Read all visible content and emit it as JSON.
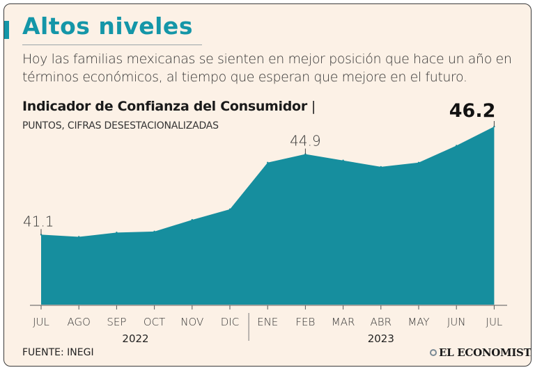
{
  "header": {
    "title": "Altos niveles",
    "subtitle": "Hoy las familias mexicanas se sienten en mejor posición que hace un año en términos económicos, al tiempo que esperan que mejore en el futuro."
  },
  "chart_heading": {
    "title": "Indicador de Confianza del Consumidor",
    "separator": "|",
    "units": "PUNTOS, CIFRAS DESESTACIONALIZADAS"
  },
  "footer": {
    "source": "FUENTE: INEGI",
    "logo": "EL ECONOMISTA"
  },
  "colors": {
    "accent": "#1496a8",
    "area": "#168e9e",
    "background": "#fcf1e6"
  },
  "chart_data": {
    "type": "area",
    "categories": [
      "JUL",
      "AGO",
      "SEP",
      "OCT",
      "NOV",
      "DIC",
      "ENE",
      "FEB",
      "MAR",
      "ABR",
      "MAY",
      "JUN",
      "JUL"
    ],
    "year_groups": [
      {
        "label": "2022",
        "from": 0,
        "to": 5
      },
      {
        "label": "2023",
        "from": 6,
        "to": 12
      }
    ],
    "series": [
      {
        "name": "Indicador de Confianza del Consumidor",
        "values": [
          41.1,
          41.0,
          41.2,
          41.25,
          41.8,
          42.3,
          44.5,
          44.9,
          44.6,
          44.3,
          44.5,
          45.3,
          46.2
        ]
      }
    ],
    "annotations": [
      {
        "index": 0,
        "text": "41.1",
        "style": "normal"
      },
      {
        "index": 7,
        "text": "44.9",
        "style": "normal"
      },
      {
        "index": 12,
        "text": "46.2",
        "style": "highlight"
      }
    ],
    "ylim": [
      37.8,
      46.2
    ],
    "xlabel": "",
    "ylabel": ""
  }
}
